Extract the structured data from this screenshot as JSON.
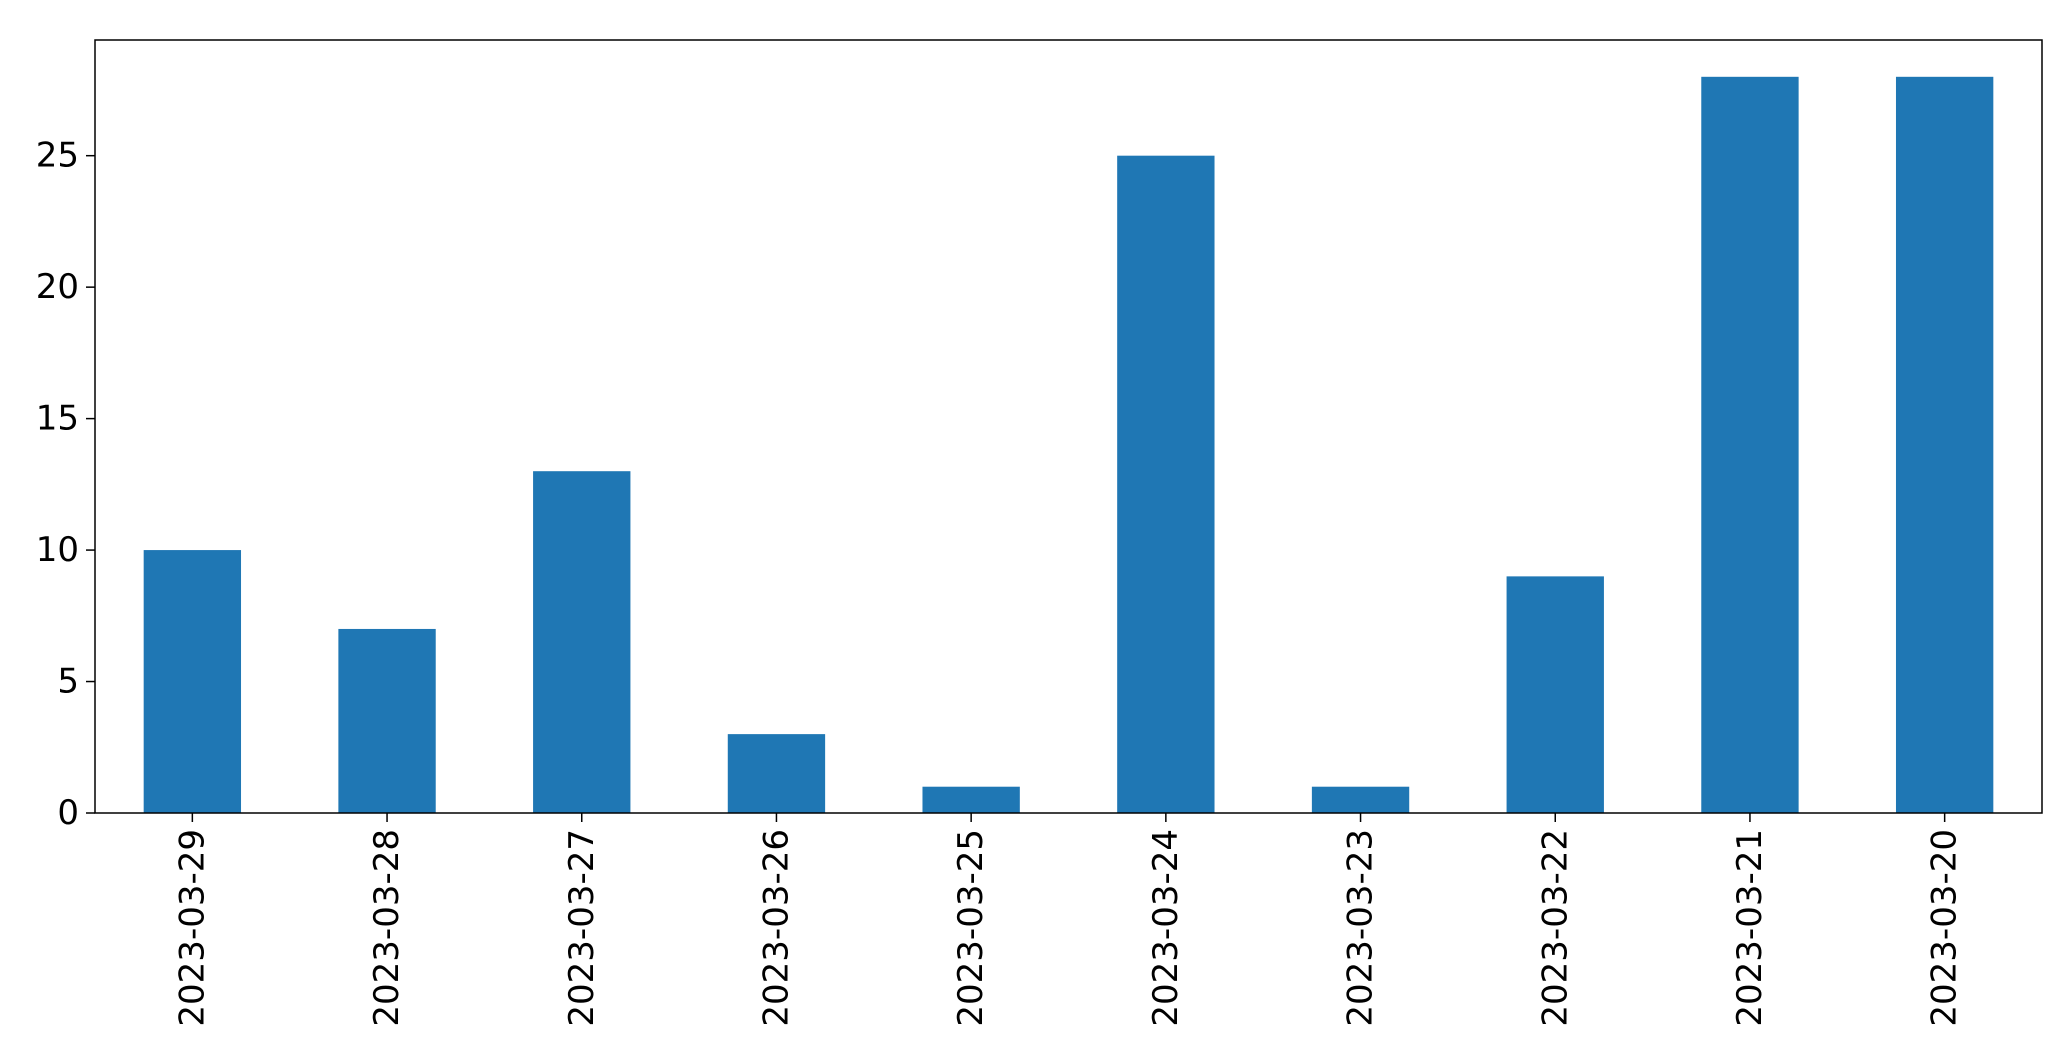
{
  "colors": {
    "bar": "#1f77b4",
    "axis": "#000000",
    "background": "#ffffff"
  },
  "chart_data": {
    "type": "bar",
    "title": "",
    "xlabel": "",
    "ylabel": "",
    "categories": [
      "2023-03-29",
      "2023-03-28",
      "2023-03-27",
      "2023-03-26",
      "2023-03-25",
      "2023-03-24",
      "2023-03-23",
      "2023-03-22",
      "2023-03-21",
      "2023-03-20"
    ],
    "values": [
      10,
      7,
      13,
      3,
      1,
      25,
      1,
      9,
      28,
      28
    ],
    "ylim": [
      0,
      29.4
    ],
    "yticks": [
      0,
      5,
      10,
      15,
      20,
      25
    ],
    "grid": false,
    "legend": "none"
  }
}
